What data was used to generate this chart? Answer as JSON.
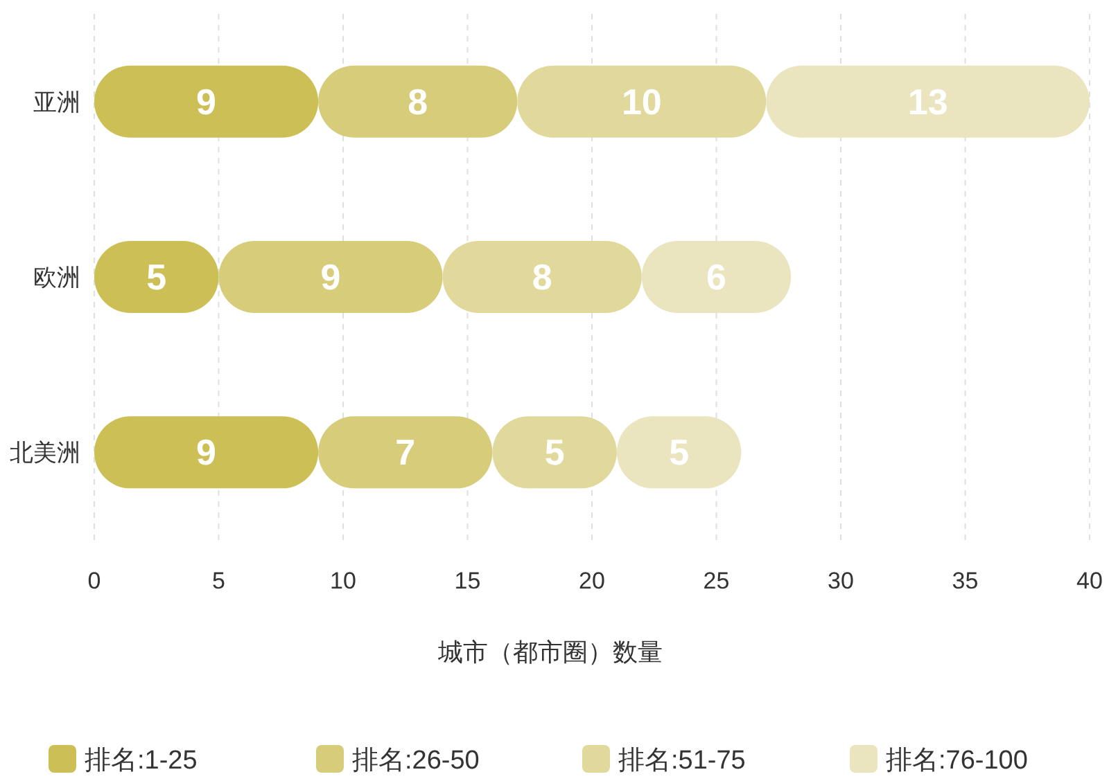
{
  "chart_data": {
    "type": "bar",
    "orientation": "horizontal",
    "stacked": true,
    "categories": [
      "亚洲",
      "欧洲",
      "北美洲"
    ],
    "series": [
      {
        "name": "排名:1-25",
        "color": "#cbbf55",
        "values": [
          9,
          5,
          9
        ]
      },
      {
        "name": "排名:26-50",
        "color": "#d6cc7a",
        "values": [
          8,
          9,
          7
        ]
      },
      {
        "name": "排名:51-75",
        "color": "#e1d99c",
        "values": [
          10,
          8,
          5
        ]
      },
      {
        "name": "排名:76-100",
        "color": "#eae4bf",
        "values": [
          13,
          6,
          5
        ]
      }
    ],
    "xlim": [
      0,
      40
    ],
    "xticks": [
      0,
      5,
      10,
      15,
      20,
      25,
      30,
      35,
      40
    ],
    "xlabel": "城市（都市圈）数量",
    "grid": "x",
    "legend": "bottom",
    "data_labels": true
  }
}
